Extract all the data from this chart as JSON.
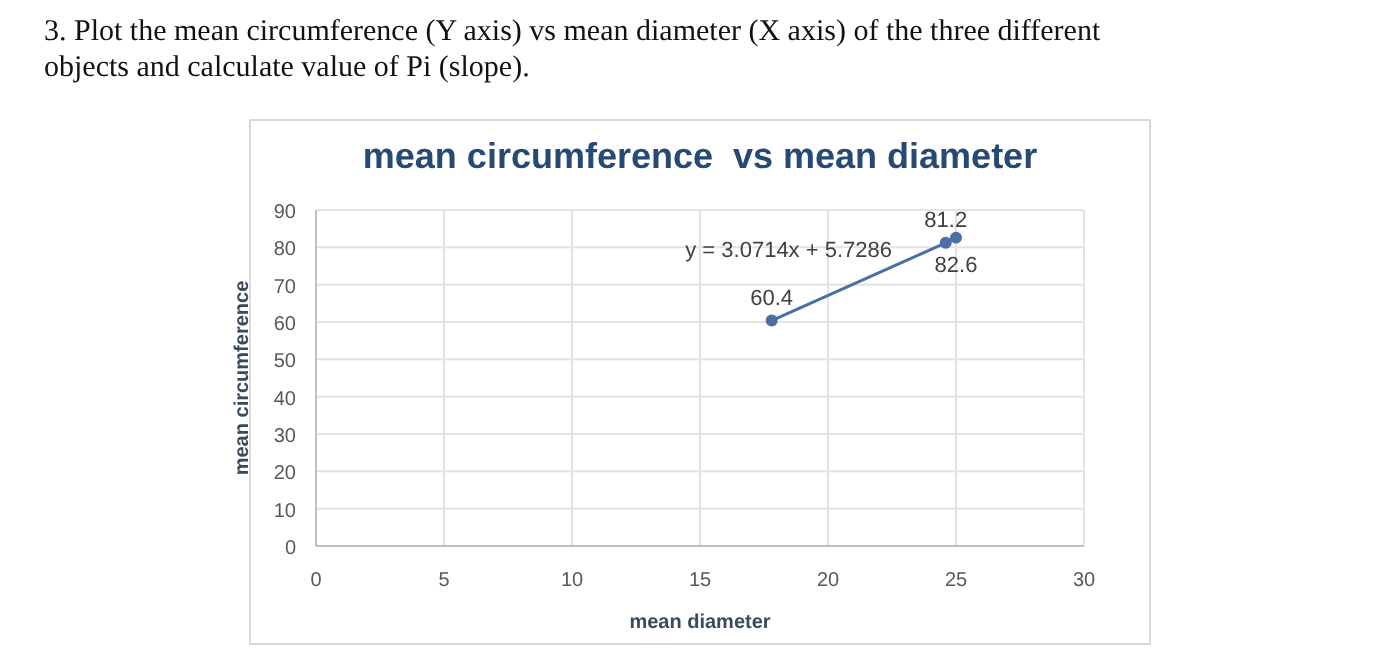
{
  "chart_data": {
    "type": "line",
    "title": "mean circumference  vs mean diameter",
    "xlabel": "mean diameter",
    "ylabel": "mean circumference",
    "annotations": [
      "3. Plot the mean circumference (Y axis) vs mean diameter (X axis) of the three different objects and calculate value of Pi (slope).",
      "y = 3.0714x + 5.7286"
    ],
    "x": [
      17.8,
      24.6,
      25.0
    ],
    "series": [
      {
        "color": "#4a6fa5",
        "values": [
          60.4,
          81.2,
          82.6
        ]
      }
    ],
    "xlim": [
      0,
      30
    ],
    "xticks": [
      0,
      5,
      10,
      15,
      20,
      25,
      30
    ],
    "ylim": [
      0,
      90
    ],
    "yticks": [
      0,
      10,
      20,
      30,
      40,
      50,
      60,
      70,
      80,
      90
    ],
    "grid": true,
    "data_labels": true,
    "marker": "circle",
    "line_style": "solid"
  }
}
